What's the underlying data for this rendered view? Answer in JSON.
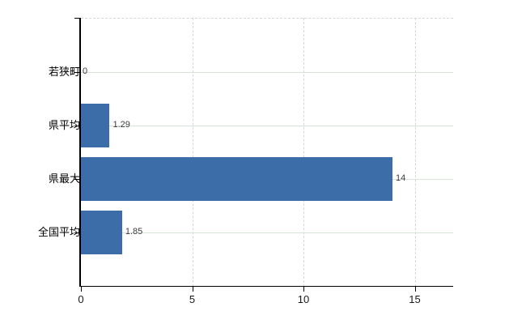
{
  "chart_data": {
    "type": "bar",
    "orientation": "horizontal",
    "title": "",
    "categories": [
      "若狭町",
      "県平均",
      "県最大",
      "全国平均"
    ],
    "values": [
      0,
      1.29,
      14,
      1.85
    ],
    "value_labels": [
      "0",
      "1.29",
      "14",
      "1.85"
    ],
    "x_ticks": [
      0,
      5,
      10,
      15
    ],
    "x_tick_labels": [
      "0",
      "5",
      "10",
      "15"
    ],
    "xlim": [
      0,
      16.7
    ],
    "legend": "none",
    "grid": {
      "horizontal_lines": "solid, one per category row",
      "vertical_lines": "dashed, at each x tick",
      "top_border": "dashed"
    },
    "colors": {
      "bar": "#3d6da9",
      "h_grid": "#d9e2d9",
      "v_grid": "#d8d4d8",
      "axis": "#000000",
      "value_label": "#3c3c3c",
      "tick_label": "#1a1a1a"
    }
  }
}
